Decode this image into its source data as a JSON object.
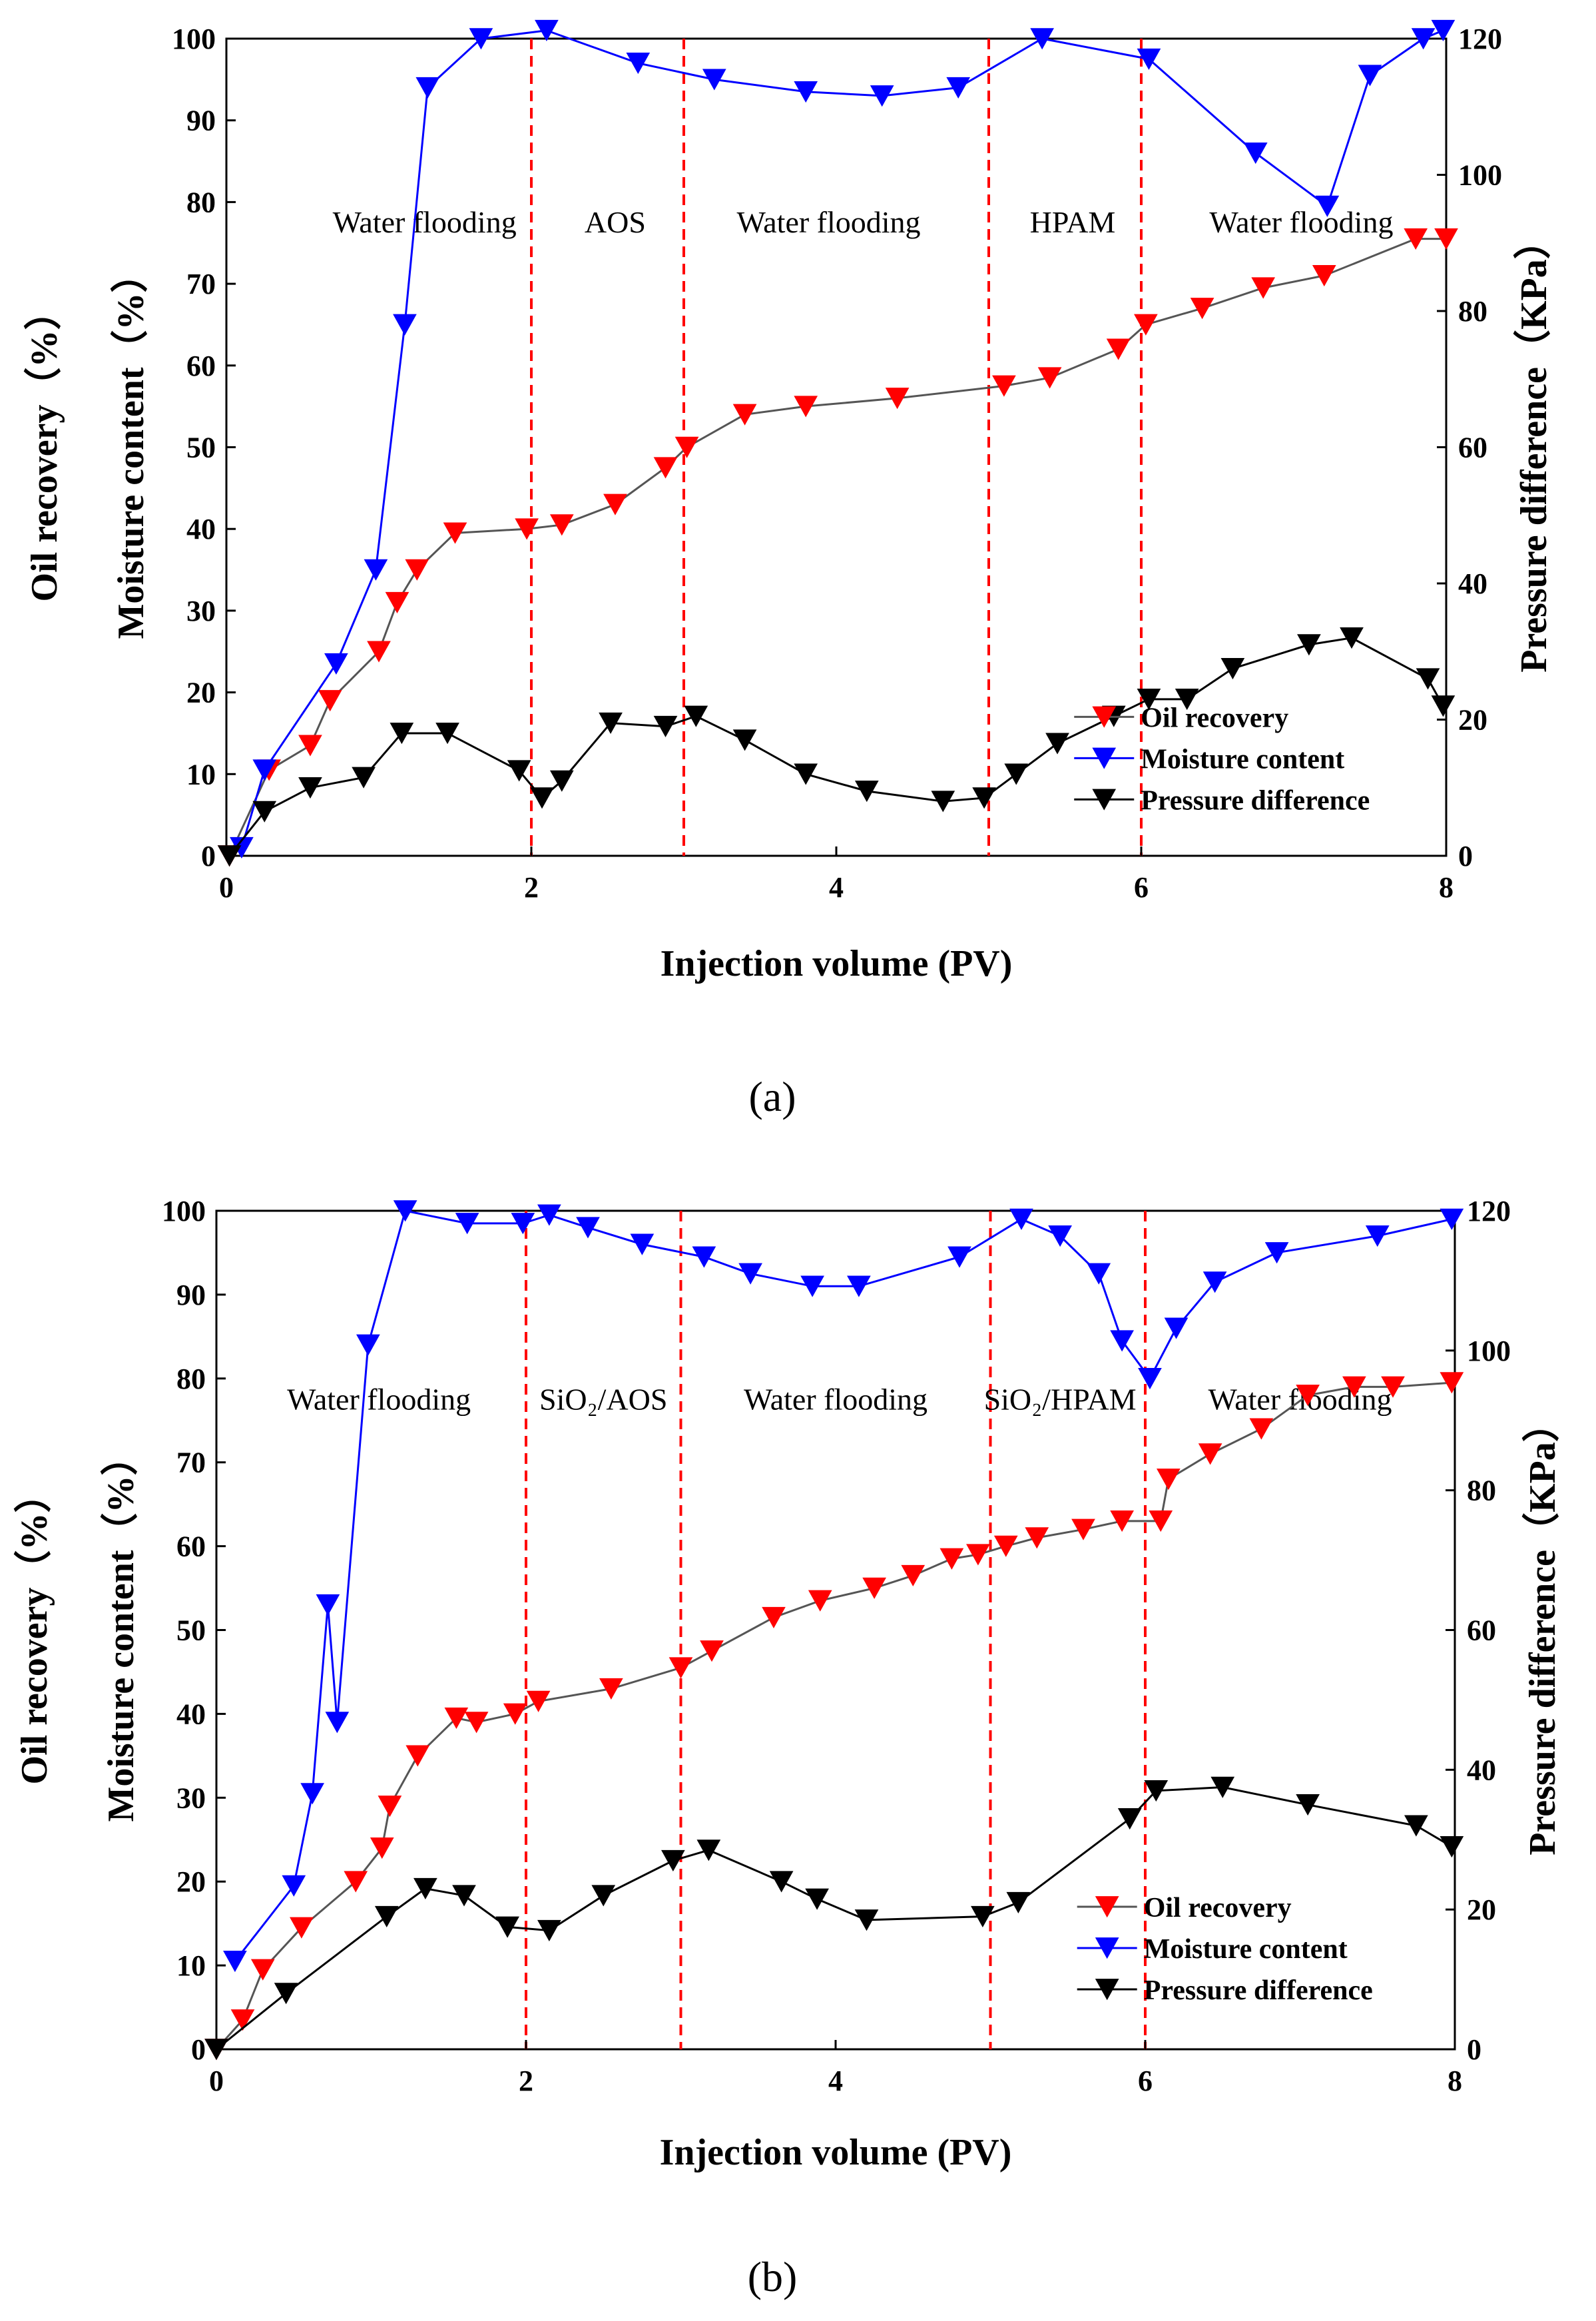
{
  "panel_labels": [
    "(a)",
    "(b)"
  ],
  "chart_data": [
    {
      "type": "line",
      "panel": "(a)",
      "xlabel": "Injection volume (PV)",
      "ylabel_primary": "Moisture content（%）",
      "ylabel_secondary": "Oil recovery（%）",
      "ylabel_right": "Pressure difference（KPa）",
      "xlim": [
        0,
        8
      ],
      "ylim": [
        0,
        100
      ],
      "y2lim": [
        0,
        120
      ],
      "x_ticks": [
        "0",
        "2",
        "4",
        "6",
        "8"
      ],
      "y_ticks": [
        "0",
        "10",
        "20",
        "30",
        "40",
        "50",
        "60",
        "70",
        "80",
        "90",
        "100"
      ],
      "y2_ticks": [
        "0",
        "20",
        "40",
        "60",
        "80",
        "100",
        "120"
      ],
      "dividers": [
        2,
        3,
        5,
        6
      ],
      "regions": [
        {
          "label": "Water  flooding",
          "x": 1.3
        },
        {
          "label": "AOS",
          "x": 2.55
        },
        {
          "label": "Water  flooding",
          "x": 3.95
        },
        {
          "label": "HPAM",
          "x": 5.55
        },
        {
          "label": "Water  flooding",
          "x": 7.05
        }
      ],
      "legend": [
        "Oil recovery",
        "Moisture content",
        "Pressure difference"
      ],
      "series": [
        {
          "name": "Oil recovery",
          "color": "#ff0000",
          "axis": "left",
          "x": [
            0.02,
            0.28,
            0.55,
            0.68,
            1.0,
            1.12,
            1.25,
            1.5,
            1.97,
            2.2,
            2.55,
            2.88,
            3.02,
            3.4,
            3.8,
            4.4,
            5.1,
            5.4,
            5.85,
            6.03,
            6.4,
            6.8,
            7.2,
            7.8,
            8.0
          ],
          "y": [
            0,
            10.5,
            13.5,
            19,
            25,
            31,
            35,
            39.5,
            40,
            40.5,
            43,
            47.5,
            50,
            54,
            55,
            56,
            57.5,
            58.5,
            62,
            65,
            67,
            69.5,
            71,
            75.5,
            75.5
          ]
        },
        {
          "name": "Moisture content",
          "color": "#0000ff",
          "axis": "left",
          "x": [
            0.1,
            0.25,
            0.72,
            0.98,
            1.17,
            1.32,
            1.67,
            2.1,
            2.7,
            3.2,
            3.8,
            4.3,
            4.8,
            5.35,
            6.05,
            6.75,
            7.22,
            7.5,
            7.85,
            7.98
          ],
          "y": [
            1,
            10.5,
            23.5,
            35,
            65,
            94,
            100,
            101,
            97,
            95,
            93.5,
            93,
            94,
            100,
            97.5,
            86,
            79.5,
            95.5,
            100,
            101
          ]
        },
        {
          "name": "Pressure difference",
          "color": "#000000",
          "axis": "right",
          "x": [
            0.02,
            0.25,
            0.55,
            0.9,
            1.15,
            1.45,
            1.92,
            2.07,
            2.2,
            2.52,
            2.88,
            3.08,
            3.4,
            3.8,
            4.2,
            4.7,
            4.97,
            5.18,
            5.45,
            5.82,
            6.05,
            6.3,
            6.6,
            7.1,
            7.38,
            7.88,
            7.98
          ],
          "y": [
            0,
            6.5,
            10,
            11.5,
            18,
            18,
            12.5,
            8.5,
            11,
            19.5,
            19,
            20.5,
            17,
            12,
            9.5,
            8,
            8.5,
            12,
            16.5,
            20.5,
            23,
            23,
            27.5,
            31,
            32,
            26,
            22
          ]
        }
      ]
    },
    {
      "type": "line",
      "panel": "(b)",
      "xlabel": "Injection volume (PV)",
      "ylabel_primary": "Moisture content（%）",
      "ylabel_secondary": "Oil recovery（%）",
      "ylabel_right": "Pressure difference（KPa）",
      "xlim": [
        0,
        8
      ],
      "ylim": [
        0,
        100
      ],
      "y2lim": [
        0,
        120
      ],
      "x_ticks": [
        "0",
        "2",
        "4",
        "6",
        "8"
      ],
      "y_ticks": [
        "0",
        "10",
        "20",
        "30",
        "40",
        "50",
        "60",
        "70",
        "80",
        "90",
        "100"
      ],
      "y2_ticks": [
        "0",
        "20",
        "40",
        "60",
        "80",
        "100",
        "120"
      ],
      "dividers": [
        2,
        3,
        5,
        6
      ],
      "regions": [
        {
          "label": "Water  flooding",
          "x": 1.05
        },
        {
          "label": "SiO₂/AOS",
          "x": 2.5
        },
        {
          "label": "Water  flooding",
          "x": 4.0
        },
        {
          "label": "SiO₂/HPAM",
          "x": 5.45
        },
        {
          "label": "Water  flooding",
          "x": 7.0
        }
      ],
      "legend": [
        "Oil recovery",
        "Moisture content",
        "Pressure difference"
      ],
      "series": [
        {
          "name": "Oil recovery",
          "color": "#ff0000",
          "axis": "left",
          "x": [
            0.0,
            0.17,
            0.3,
            0.55,
            0.9,
            1.07,
            1.12,
            1.3,
            1.55,
            1.68,
            1.93,
            2.08,
            2.55,
            3.0,
            3.2,
            3.6,
            3.9,
            4.25,
            4.5,
            4.75,
            4.92,
            5.1,
            5.3,
            5.6,
            5.85,
            6.1,
            6.15,
            6.42,
            6.75,
            7.05,
            7.35,
            7.6,
            7.98
          ],
          "y": [
            0,
            3.5,
            9.5,
            14.5,
            20,
            24,
            29,
            35,
            39.5,
            39,
            40,
            41.5,
            43,
            45.5,
            47.5,
            51.5,
            53.5,
            55,
            56.5,
            58.5,
            59,
            60,
            61,
            62,
            63,
            63,
            68,
            71,
            74,
            78,
            79,
            79,
            79.5
          ]
        },
        {
          "name": "Moisture content",
          "color": "#0000ff",
          "axis": "left",
          "x": [
            0.12,
            0.5,
            0.62,
            0.72,
            0.78,
            0.98,
            1.22,
            1.62,
            1.98,
            2.15,
            2.4,
            2.75,
            3.15,
            3.45,
            3.85,
            4.15,
            4.8,
            5.2,
            5.45,
            5.7,
            5.85,
            6.03,
            6.2,
            6.45,
            6.85,
            7.5,
            7.98
          ],
          "y": [
            10.5,
            19.5,
            30.5,
            53,
            39,
            84,
            100,
            98.5,
            98.5,
            99.5,
            98,
            96,
            94.5,
            92.5,
            91,
            91,
            94.5,
            99,
            97,
            92.5,
            84.5,
            80,
            86,
            91.5,
            95,
            97,
            99
          ]
        },
        {
          "name": "Pressure difference",
          "color": "#000000",
          "axis": "right",
          "x": [
            0.0,
            0.45,
            1.1,
            1.35,
            1.6,
            1.88,
            2.15,
            2.5,
            2.95,
            3.18,
            3.65,
            3.88,
            4.2,
            4.95,
            5.18,
            5.9,
            6.07,
            6.5,
            7.05,
            7.75,
            7.98
          ],
          "y": [
            0,
            8,
            19,
            23,
            22,
            17.5,
            17,
            22,
            27,
            28.5,
            24,
            21.5,
            18.5,
            19,
            21,
            33,
            37,
            37.5,
            35,
            32,
            29
          ]
        }
      ]
    }
  ]
}
